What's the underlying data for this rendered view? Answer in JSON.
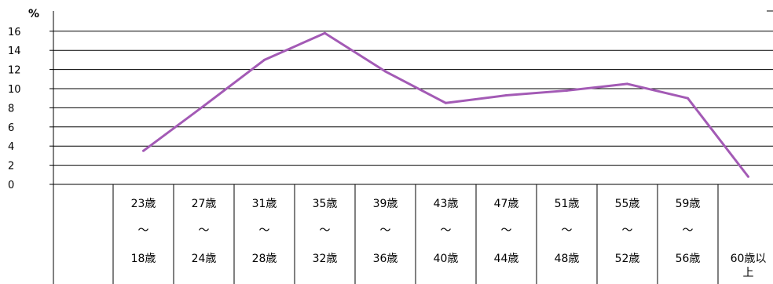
{
  "chart_data": {
    "type": "line",
    "unit_label": "%",
    "ylim": [
      0,
      16
    ],
    "y_ticks": [
      "0",
      "2",
      "4",
      "6",
      "8",
      "10",
      "12",
      "14",
      "16"
    ],
    "grid": true,
    "categories": [
      {
        "top": "23歳",
        "mid": "～",
        "bottom": "18歳"
      },
      {
        "top": "27歳",
        "mid": "～",
        "bottom": "24歳"
      },
      {
        "top": "31歳",
        "mid": "～",
        "bottom": "28歳"
      },
      {
        "top": "35歳",
        "mid": "～",
        "bottom": "32歳"
      },
      {
        "top": "39歳",
        "mid": "～",
        "bottom": "36歳"
      },
      {
        "top": "43歳",
        "mid": "～",
        "bottom": "40歳"
      },
      {
        "top": "47歳",
        "mid": "～",
        "bottom": "44歳"
      },
      {
        "top": "51歳",
        "mid": "～",
        "bottom": "48歳"
      },
      {
        "top": "55歳",
        "mid": "～",
        "bottom": "52歳"
      },
      {
        "top": "59歳",
        "mid": "～",
        "bottom": "56歳"
      },
      {
        "top": "",
        "mid": "",
        "bottom": "60歳以上"
      }
    ],
    "series": [
      {
        "values": [
          3.5,
          8.2,
          13.0,
          15.8,
          11.8,
          8.5,
          9.3,
          9.8,
          10.5,
          9.0,
          0.8
        ]
      }
    ],
    "colors": {
      "line": "#a35ab5",
      "grid": "#000000"
    }
  }
}
